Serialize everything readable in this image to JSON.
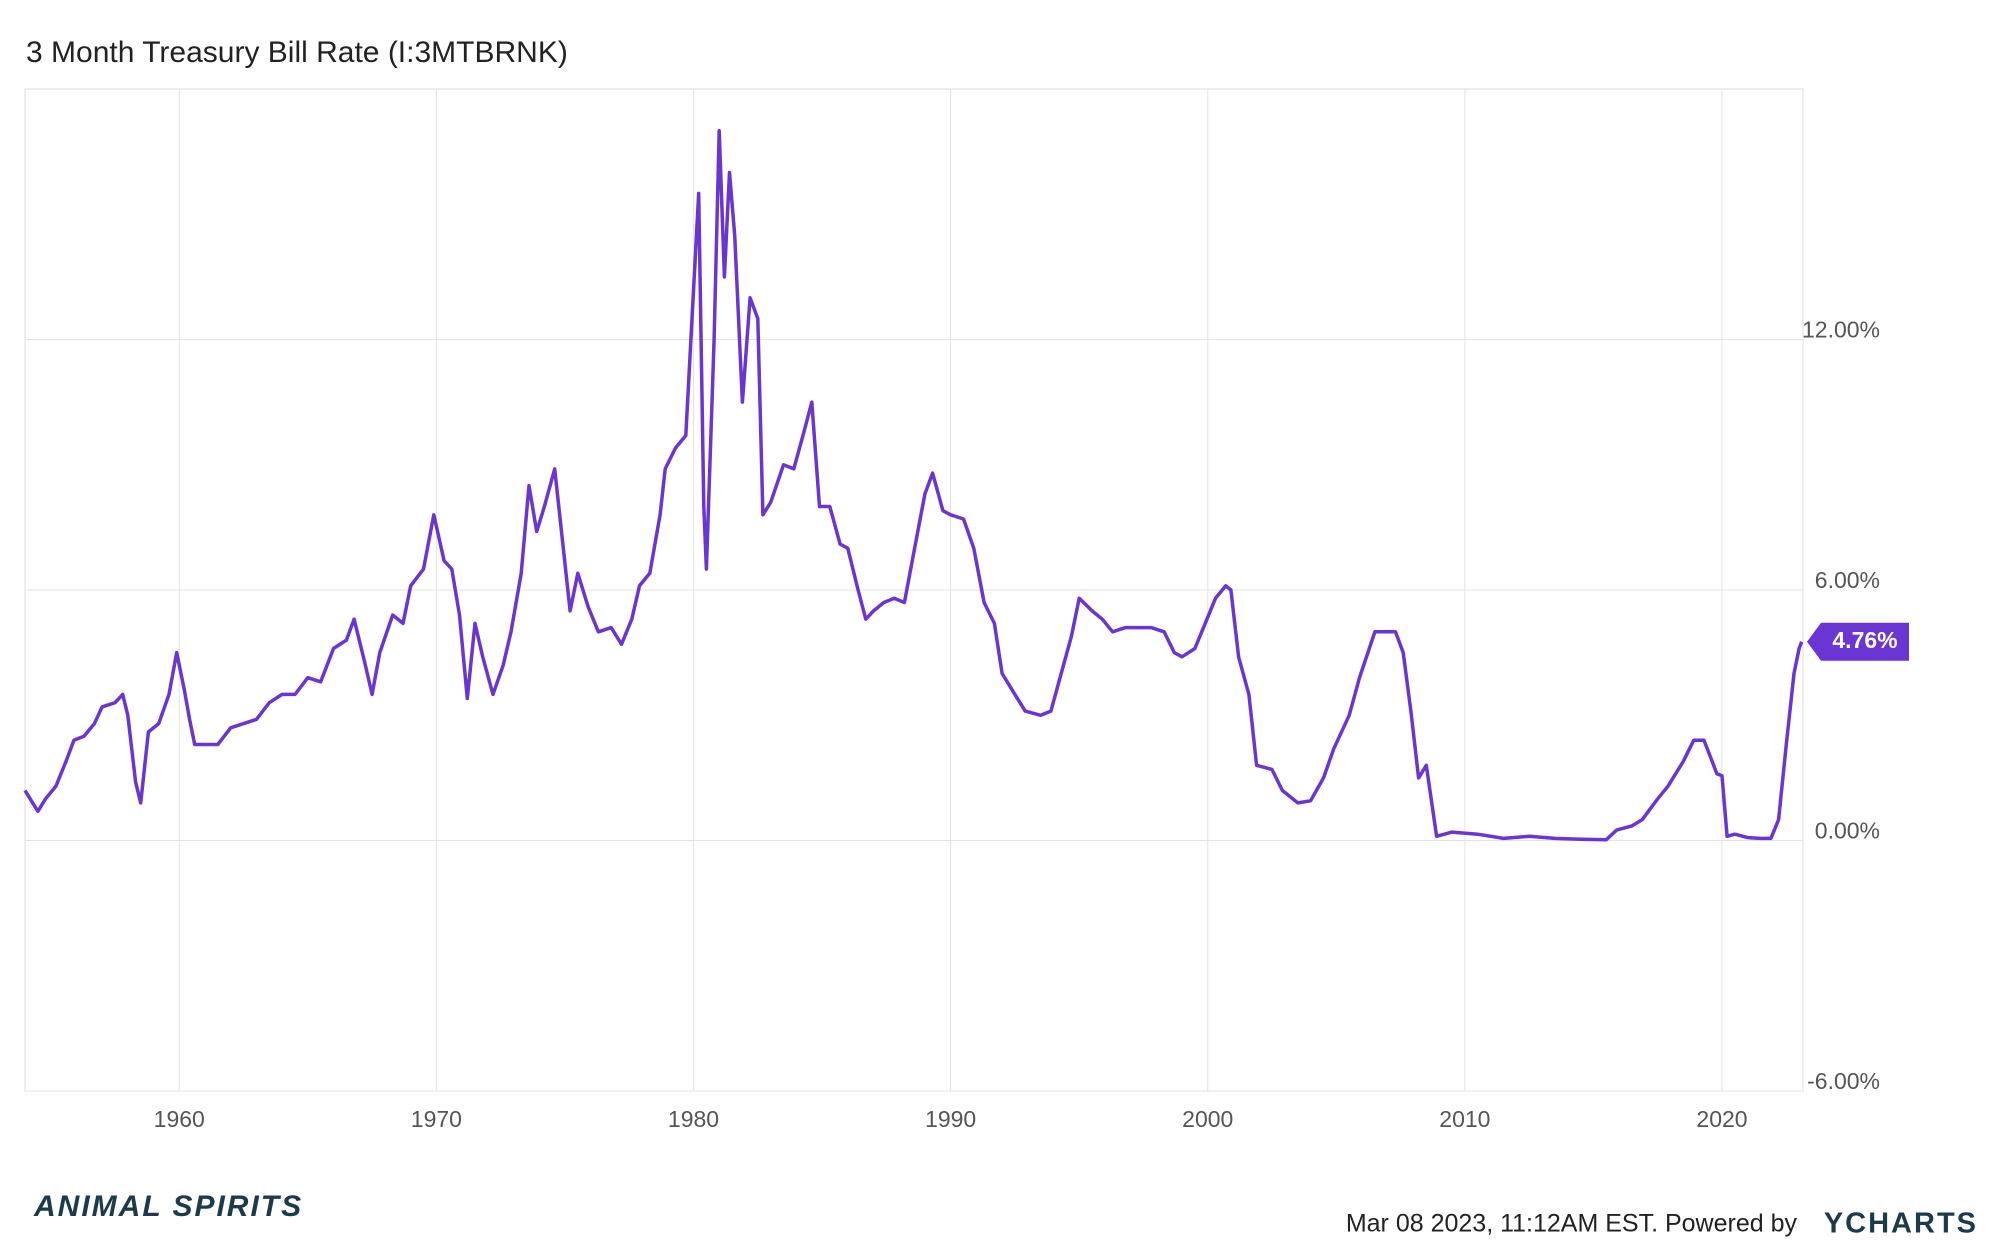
{
  "chart_data": {
    "type": "line",
    "title": "3 Month Treasury Bill Rate (I:3MTBRNK)",
    "x": [
      1954.0,
      1954.3,
      1954.5,
      1954.8,
      1955.2,
      1955.6,
      1955.9,
      1956.3,
      1956.7,
      1957.0,
      1957.5,
      1957.8,
      1958.0,
      1958.3,
      1958.5,
      1958.8,
      1959.2,
      1959.6,
      1959.9,
      1960.2,
      1960.4,
      1960.6,
      1961.0,
      1961.5,
      1962.0,
      1962.5,
      1963.0,
      1963.5,
      1964.0,
      1964.5,
      1965.0,
      1965.5,
      1966.0,
      1966.5,
      1966.8,
      1967.2,
      1967.5,
      1967.8,
      1968.3,
      1968.7,
      1969.0,
      1969.5,
      1969.9,
      1970.3,
      1970.6,
      1970.9,
      1971.2,
      1971.5,
      1971.8,
      1972.2,
      1972.6,
      1972.9,
      1973.3,
      1973.6,
      1973.9,
      1974.2,
      1974.6,
      1974.9,
      1975.2,
      1975.5,
      1975.9,
      1976.3,
      1976.8,
      1977.2,
      1977.6,
      1977.9,
      1978.3,
      1978.7,
      1978.9,
      1979.3,
      1979.7,
      1979.9,
      1980.2,
      1980.4,
      1980.5,
      1980.8,
      1981.0,
      1981.2,
      1981.4,
      1981.6,
      1981.9,
      1982.2,
      1982.5,
      1982.7,
      1983.0,
      1983.5,
      1983.9,
      1984.3,
      1984.6,
      1984.9,
      1985.3,
      1985.7,
      1986.0,
      1986.4,
      1986.7,
      1987.0,
      1987.4,
      1987.8,
      1988.2,
      1988.6,
      1989.0,
      1989.3,
      1989.7,
      1990.0,
      1990.5,
      1990.9,
      1991.3,
      1991.7,
      1992.0,
      1992.5,
      1992.9,
      1993.5,
      1993.9,
      1994.3,
      1994.7,
      1995.0,
      1995.5,
      1995.9,
      1996.3,
      1996.8,
      1997.3,
      1997.8,
      1998.3,
      1998.7,
      1999.0,
      1999.5,
      1999.9,
      2000.3,
      2000.7,
      2000.9,
      2001.2,
      2001.6,
      2001.9,
      2002.5,
      2002.9,
      2003.5,
      2004.0,
      2004.5,
      2004.9,
      2005.5,
      2005.9,
      2006.5,
      2006.9,
      2007.3,
      2007.6,
      2007.9,
      2008.2,
      2008.5,
      2008.9,
      2009.5,
      2010.5,
      2011.5,
      2012.5,
      2013.5,
      2014.5,
      2015.5,
      2015.9,
      2016.5,
      2016.9,
      2017.5,
      2017.9,
      2018.5,
      2018.9,
      2019.3,
      2019.8,
      2020.0,
      2020.2,
      2020.5,
      2021.0,
      2021.5,
      2021.9,
      2022.2,
      2022.5,
      2022.8,
      2023.0,
      2023.1
    ],
    "series": [
      {
        "color": "#6a35d2",
        "values": [
          1.2,
          0.9,
          0.7,
          1.0,
          1.3,
          1.9,
          2.4,
          2.5,
          2.8,
          3.2,
          3.3,
          3.5,
          3.0,
          1.4,
          0.9,
          2.6,
          2.8,
          3.5,
          4.5,
          3.6,
          2.9,
          2.3,
          2.3,
          2.3,
          2.7,
          2.8,
          2.9,
          3.3,
          3.5,
          3.5,
          3.9,
          3.8,
          4.6,
          4.8,
          5.3,
          4.3,
          3.5,
          4.5,
          5.4,
          5.2,
          6.1,
          6.5,
          7.8,
          6.7,
          6.5,
          5.4,
          3.4,
          5.2,
          4.4,
          3.5,
          4.2,
          5.0,
          6.4,
          8.5,
          7.4,
          8.0,
          8.9,
          7.2,
          5.5,
          6.4,
          5.6,
          5.0,
          5.1,
          4.7,
          5.3,
          6.1,
          6.4,
          7.8,
          8.9,
          9.4,
          9.7,
          12.0,
          15.5,
          8.0,
          6.5,
          12.0,
          17.0,
          13.5,
          16.0,
          14.5,
          10.5,
          13.0,
          12.5,
          7.8,
          8.1,
          9.0,
          8.9,
          9.8,
          10.5,
          8.0,
          8.0,
          7.1,
          7.0,
          6.0,
          5.3,
          5.5,
          5.7,
          5.8,
          5.7,
          7.0,
          8.3,
          8.8,
          7.9,
          7.8,
          7.7,
          7.0,
          5.7,
          5.2,
          4.0,
          3.5,
          3.1,
          3.0,
          3.1,
          4.0,
          4.9,
          5.8,
          5.5,
          5.3,
          5.0,
          5.1,
          5.1,
          5.1,
          5.0,
          4.5,
          4.4,
          4.6,
          5.2,
          5.8,
          6.1,
          6.0,
          4.4,
          3.5,
          1.8,
          1.7,
          1.2,
          0.9,
          0.95,
          1.5,
          2.2,
          3.0,
          3.9,
          5.0,
          5.0,
          5.0,
          4.5,
          3.1,
          1.5,
          1.8,
          0.1,
          0.2,
          0.15,
          0.05,
          0.1,
          0.05,
          0.03,
          0.02,
          0.25,
          0.35,
          0.5,
          1.0,
          1.3,
          1.9,
          2.4,
          2.4,
          1.6,
          1.55,
          0.1,
          0.15,
          0.07,
          0.05,
          0.05,
          0.5,
          2.3,
          4.0,
          4.6,
          4.76
        ]
      }
    ],
    "current": {
      "value": 4.76,
      "label": "4.76%"
    },
    "xlim": [
      1954.0,
      2023.15
    ],
    "ylim": [
      -6,
      18
    ],
    "xticks": [
      1960,
      1970,
      1980,
      1990,
      2000,
      2010,
      2020
    ],
    "yticks": [
      {
        "value": -6,
        "label": "-6.00%"
      },
      {
        "value": 0,
        "label": "0.00%"
      },
      {
        "value": 6,
        "label": "6.00%"
      },
      {
        "value": 12,
        "label": "12.00%"
      }
    ],
    "grid": true,
    "footer": "Mar 08 2023, 11:12AM EST. Powered by",
    "brand": "YCHARTS",
    "logo": "ANIMAL SPIRITS"
  }
}
